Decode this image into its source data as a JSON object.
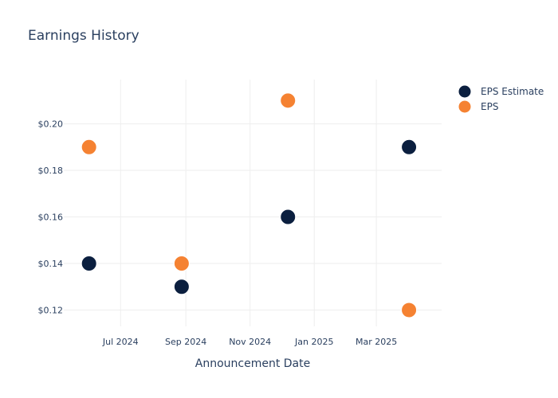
{
  "chart_data": {
    "type": "scatter",
    "title": "Earnings History",
    "xlabel": "Announcement Date",
    "ylabel": "",
    "x_ticks": [
      {
        "date": "2024-07-01",
        "label": "Jul 2024"
      },
      {
        "date": "2024-09-01",
        "label": "Sep 2024"
      },
      {
        "date": "2024-11-01",
        "label": "Nov 2024"
      },
      {
        "date": "2025-01-01",
        "label": "Jan 2025"
      },
      {
        "date": "2025-03-01",
        "label": "Mar 2025"
      }
    ],
    "y_ticks": [
      {
        "value": 0.12,
        "label": "$0.12"
      },
      {
        "value": 0.14,
        "label": "$0.14"
      },
      {
        "value": 0.16,
        "label": "$0.16"
      },
      {
        "value": 0.18,
        "label": "$0.18"
      },
      {
        "value": 0.2,
        "label": "$0.20"
      }
    ],
    "xlim": [
      "2024-05-08",
      "2025-05-02"
    ],
    "ylim": [
      0.113,
      0.219
    ],
    "grid": true,
    "legend_position": "top-right",
    "series": [
      {
        "name": "EPS Estimate",
        "color": "#0b1f3f",
        "points": [
          {
            "x": "2024-06-01",
            "y": 0.14
          },
          {
            "x": "2024-08-28",
            "y": 0.13
          },
          {
            "x": "2024-12-07",
            "y": 0.16
          },
          {
            "x": "2025-04-01",
            "y": 0.19
          }
        ]
      },
      {
        "name": "EPS",
        "color": "#f58232",
        "points": [
          {
            "x": "2024-06-01",
            "y": 0.19
          },
          {
            "x": "2024-08-28",
            "y": 0.14
          },
          {
            "x": "2024-12-07",
            "y": 0.21
          },
          {
            "x": "2025-04-01",
            "y": 0.12
          }
        ]
      }
    ]
  }
}
